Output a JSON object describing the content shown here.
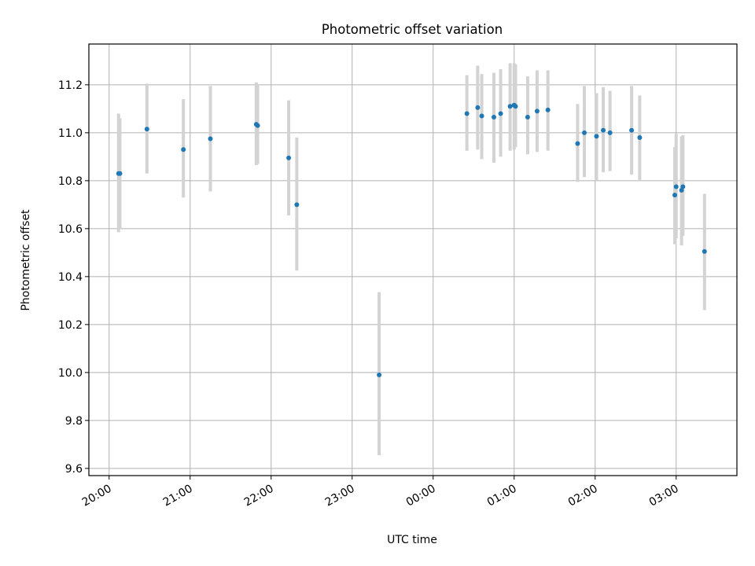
{
  "chart_data": {
    "type": "scatter",
    "title": "Photometric offset variation",
    "xlabel": "UTC time",
    "ylabel": "Photometric offset",
    "xlim": [
      "2024-01-01T19:45",
      "2024-01-02T03:45"
    ],
    "ylim": [
      9.57,
      11.37
    ],
    "x_ticks": [
      "20:00",
      "21:00",
      "22:00",
      "23:00",
      "00:00",
      "01:00",
      "02:00",
      "03:00"
    ],
    "y_ticks": [
      "9.6",
      "9.8",
      "10.0",
      "10.2",
      "10.4",
      "10.6",
      "10.8",
      "11.0",
      "11.2"
    ],
    "grid": true,
    "legend": "none",
    "colors": {
      "point": "#1f77b4",
      "errorbar": "#d3d3d3",
      "grid": "#b0b0b0"
    },
    "points": [
      {
        "x": "2024-01-01T20:07",
        "y": 10.83,
        "lo": 10.585,
        "hi": 11.08
      },
      {
        "x": "2024-01-01T20:08",
        "y": 10.83,
        "lo": 10.6,
        "hi": 11.06
      },
      {
        "x": "2024-01-01T20:28",
        "y": 11.015,
        "lo": 10.83,
        "hi": 11.205
      },
      {
        "x": "2024-01-01T20:55",
        "y": 10.93,
        "lo": 10.73,
        "hi": 11.14
      },
      {
        "x": "2024-01-01T21:15",
        "y": 10.975,
        "lo": 10.755,
        "hi": 11.195
      },
      {
        "x": "2024-01-01T21:49",
        "y": 11.035,
        "lo": 10.865,
        "hi": 11.21
      },
      {
        "x": "2024-01-01T21:50",
        "y": 11.03,
        "lo": 10.87,
        "hi": 11.2
      },
      {
        "x": "2024-01-01T22:13",
        "y": 10.895,
        "lo": 10.655,
        "hi": 11.135
      },
      {
        "x": "2024-01-01T22:19",
        "y": 10.7,
        "lo": 10.425,
        "hi": 10.98
      },
      {
        "x": "2024-01-01T23:20",
        "y": 9.99,
        "lo": 9.655,
        "hi": 10.335
      },
      {
        "x": "2024-01-02T00:25",
        "y": 11.08,
        "lo": 10.925,
        "hi": 11.24
      },
      {
        "x": "2024-01-02T00:33",
        "y": 11.105,
        "lo": 10.93,
        "hi": 11.28
      },
      {
        "x": "2024-01-02T00:36",
        "y": 11.07,
        "lo": 10.89,
        "hi": 11.245
      },
      {
        "x": "2024-01-02T00:45",
        "y": 11.065,
        "lo": 10.875,
        "hi": 11.25
      },
      {
        "x": "2024-01-02T00:50",
        "y": 11.08,
        "lo": 10.9,
        "hi": 11.265
      },
      {
        "x": "2024-01-02T00:57",
        "y": 11.11,
        "lo": 10.925,
        "hi": 11.29
      },
      {
        "x": "2024-01-02T01:00",
        "y": 11.115,
        "lo": 10.93,
        "hi": 11.29
      },
      {
        "x": "2024-01-02T01:01",
        "y": 11.11,
        "lo": 10.94,
        "hi": 11.285
      },
      {
        "x": "2024-01-02T01:10",
        "y": 11.065,
        "lo": 10.91,
        "hi": 11.235
      },
      {
        "x": "2024-01-02T01:17",
        "y": 11.09,
        "lo": 10.92,
        "hi": 11.26
      },
      {
        "x": "2024-01-02T01:25",
        "y": 11.095,
        "lo": 10.925,
        "hi": 11.26
      },
      {
        "x": "2024-01-02T01:47",
        "y": 10.955,
        "lo": 10.795,
        "hi": 11.12
      },
      {
        "x": "2024-01-02T01:52",
        "y": 11.0,
        "lo": 10.815,
        "hi": 11.195
      },
      {
        "x": "2024-01-02T02:01",
        "y": 10.985,
        "lo": 10.8,
        "hi": 11.165
      },
      {
        "x": "2024-01-02T02:06",
        "y": 11.01,
        "lo": 10.835,
        "hi": 11.19
      },
      {
        "x": "2024-01-02T02:11",
        "y": 11.0,
        "lo": 10.84,
        "hi": 11.175
      },
      {
        "x": "2024-01-02T02:27",
        "y": 11.01,
        "lo": 10.825,
        "hi": 11.195
      },
      {
        "x": "2024-01-02T02:33",
        "y": 10.98,
        "lo": 10.8,
        "hi": 11.155
      },
      {
        "x": "2024-01-02T02:59",
        "y": 10.74,
        "lo": 10.535,
        "hi": 10.94
      },
      {
        "x": "2024-01-02T03:00",
        "y": 10.775,
        "lo": 10.56,
        "hi": 10.995
      },
      {
        "x": "2024-01-02T03:04",
        "y": 10.76,
        "lo": 10.53,
        "hi": 10.985
      },
      {
        "x": "2024-01-02T03:05",
        "y": 10.775,
        "lo": 10.57,
        "hi": 10.99
      },
      {
        "x": "2024-01-02T03:21",
        "y": 10.505,
        "lo": 10.26,
        "hi": 10.745
      }
    ]
  }
}
